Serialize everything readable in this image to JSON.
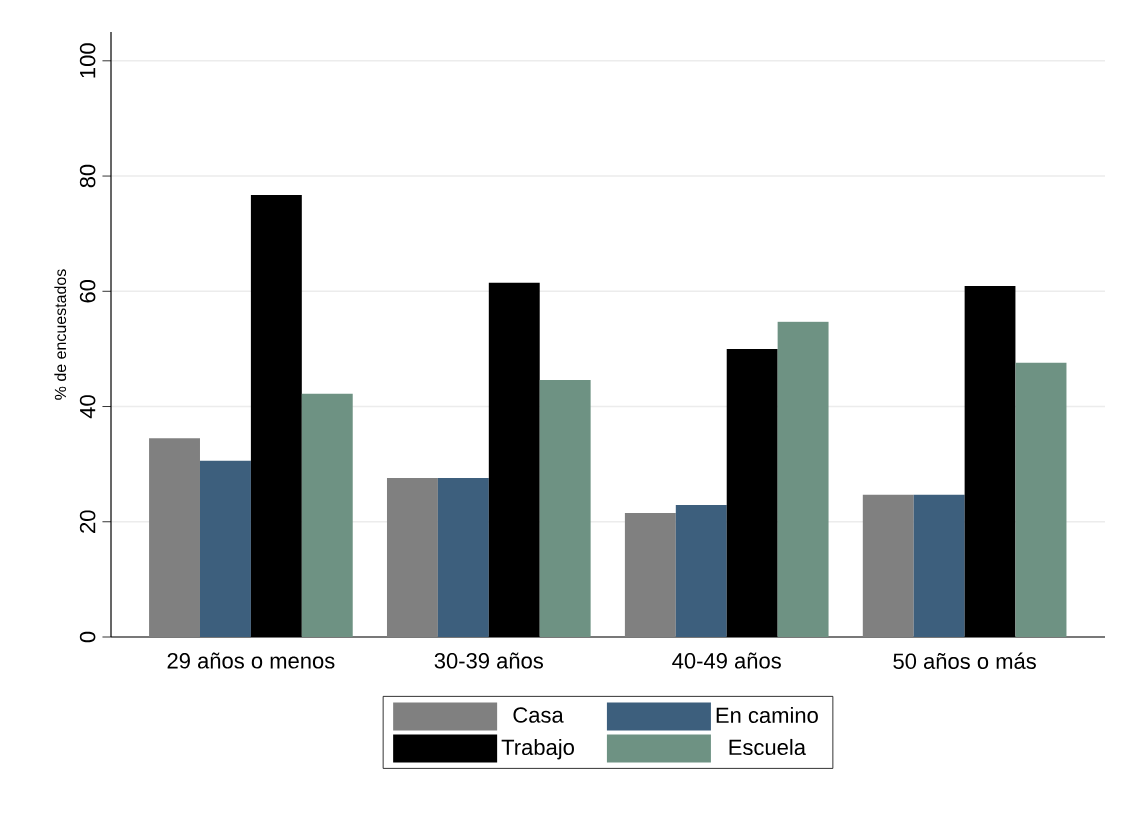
{
  "chart_data": {
    "type": "bar",
    "ylabel": "% de encuestados",
    "categories": [
      "29 años o menos",
      "30-39 años",
      "40-49 años",
      "50 años o más"
    ],
    "series": [
      {
        "name": "Casa",
        "color": "#808080",
        "values": [
          34.5,
          27.6,
          21.5,
          24.7
        ]
      },
      {
        "name": "En camino",
        "color": "#3d5f7d",
        "values": [
          30.6,
          27.6,
          22.9,
          24.7
        ]
      },
      {
        "name": "Trabajo",
        "color": "#000000",
        "values": [
          76.7,
          61.5,
          50.0,
          60.9
        ]
      },
      {
        "name": "Escuela",
        "color": "#6e9283",
        "values": [
          42.2,
          44.6,
          54.7,
          47.6
        ]
      }
    ],
    "ylim": [
      0,
      105
    ],
    "yticks": [
      0,
      20,
      40,
      60,
      80,
      100
    ],
    "grid": "y",
    "legend": "bottom"
  }
}
